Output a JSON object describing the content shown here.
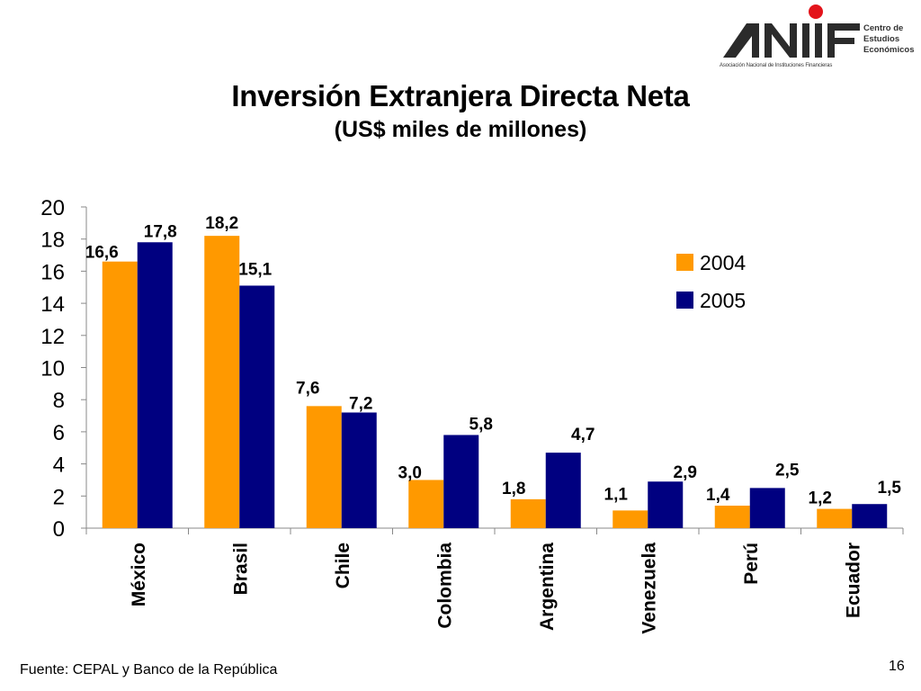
{
  "logo": {
    "name": "ANIF",
    "side_lines": [
      "Centro de",
      "Estudios",
      "Económicos"
    ],
    "org": "Asociación Nacional de Instituciones Financieras",
    "dot_color": "#e3141b"
  },
  "footer": {
    "source": "Fuente: CEPAL y Banco de la República",
    "page": "16"
  },
  "chart_data": {
    "type": "bar",
    "title": "Inversión Extranjera Directa Neta",
    "subtitle": "(US$ miles de millones)",
    "categories": [
      "México",
      "Brasil",
      "Chile",
      "Colombia",
      "Argentina",
      "Venezuela",
      "Perú",
      "Ecuador"
    ],
    "series": [
      {
        "name": "2004",
        "color": "#ff9900",
        "values": [
          16.6,
          18.2,
          7.6,
          3.0,
          1.8,
          1.1,
          1.4,
          1.2
        ],
        "labels": [
          "16,6",
          "18,2",
          "7,6",
          "3,0",
          "1,8",
          "1,1",
          "1,4",
          "1,2"
        ]
      },
      {
        "name": "2005",
        "color": "#000080",
        "values": [
          17.8,
          15.1,
          7.2,
          5.8,
          4.7,
          2.9,
          2.5,
          1.5
        ],
        "labels": [
          "17,8",
          "15,1",
          "7,2",
          "5,8",
          "4,7",
          "2,9",
          "2,5",
          "1,5"
        ]
      }
    ],
    "ylim": [
      0,
      20
    ],
    "yticks": [
      0,
      2,
      4,
      6,
      8,
      10,
      12,
      14,
      16,
      18,
      20
    ],
    "xlabel": "",
    "ylabel": "",
    "grid": false,
    "legend": "right"
  }
}
